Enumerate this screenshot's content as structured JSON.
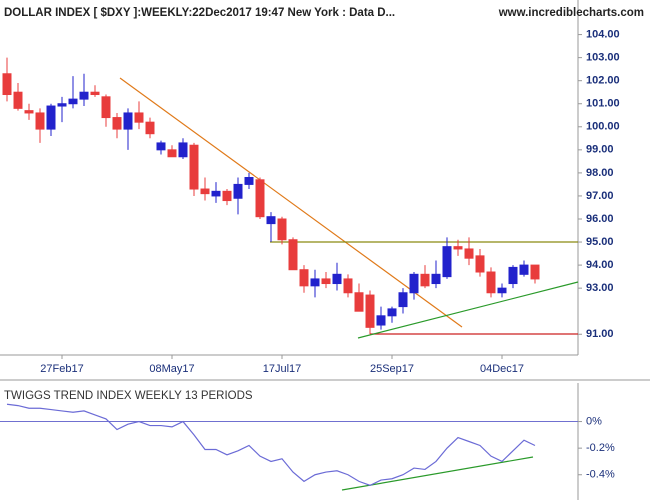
{
  "chart_data": [
    {
      "type": "candlestick",
      "title": "DOLLAR INDEX [ $DXY ]:WEEKLY:22Dec2017 19:47 New York : Data D...",
      "subtitle": "www.incrediblecharts.com",
      "categories": [
        null,
        null,
        null,
        null,
        null,
        "27Feb17",
        null,
        null,
        null,
        null,
        null,
        null,
        null,
        null,
        null,
        "08May17",
        null,
        null,
        null,
        null,
        null,
        null,
        null,
        null,
        null,
        "17Jul17",
        null,
        null,
        null,
        null,
        null,
        null,
        null,
        null,
        null,
        "25Sep17",
        null,
        null,
        null,
        null,
        null,
        null,
        null,
        null,
        null,
        "04Dec17",
        null,
        null,
        null
      ],
      "open": [
        102.3,
        101.5,
        100.7,
        100.6,
        99.9,
        100.9,
        101.0,
        101.2,
        101.5,
        101.3,
        100.4,
        99.9,
        100.6,
        100.2,
        99.0,
        99.0,
        98.7,
        99.2,
        97.3,
        97.0,
        97.2,
        96.9,
        97.5,
        97.7,
        95.8,
        96.0,
        95.1,
        93.8,
        93.1,
        93.4,
        93.2,
        93.4,
        92.8,
        92.7,
        91.4,
        91.8,
        92.2,
        92.8,
        93.6,
        93.2,
        93.5,
        94.8,
        94.7,
        94.4,
        93.7,
        92.8,
        93.2,
        93.6,
        94.0
      ],
      "high": [
        103.0,
        101.9,
        101.0,
        100.8,
        101.0,
        101.3,
        102.2,
        102.3,
        101.8,
        101.4,
        100.6,
        100.8,
        101.1,
        100.4,
        99.4,
        99.2,
        99.5,
        99.3,
        97.8,
        97.6,
        97.3,
        97.8,
        98.0,
        97.8,
        96.3,
        96.1,
        95.2,
        94.0,
        93.8,
        93.7,
        94.1,
        93.6,
        93.2,
        92.9,
        92.2,
        92.2,
        93.0,
        93.7,
        94.0,
        94.2,
        95.2,
        95.1,
        95.2,
        94.7,
        93.9,
        93.2,
        94.0,
        94.2,
        94.0
      ],
      "low": [
        101.1,
        100.7,
        100.3,
        99.3,
        99.6,
        100.2,
        100.8,
        100.9,
        101.3,
        100.0,
        99.5,
        99.0,
        99.9,
        99.5,
        98.8,
        98.7,
        98.6,
        97.0,
        96.8,
        96.7,
        96.6,
        96.2,
        97.3,
        96.0,
        95.0,
        94.9,
        93.8,
        92.8,
        92.6,
        93.0,
        92.9,
        92.6,
        92.0,
        91.0,
        91.2,
        91.5,
        91.9,
        92.5,
        93.0,
        93.0,
        93.4,
        94.4,
        94.0,
        93.5,
        92.6,
        92.6,
        93.0,
        93.5,
        93.2
      ],
      "close": [
        101.4,
        100.8,
        100.6,
        99.9,
        100.9,
        101.0,
        101.2,
        101.5,
        101.4,
        100.4,
        99.9,
        100.6,
        100.2,
        99.7,
        99.3,
        98.7,
        99.3,
        97.3,
        97.1,
        97.2,
        96.8,
        97.5,
        97.8,
        96.1,
        96.1,
        95.1,
        93.8,
        93.1,
        93.4,
        93.2,
        93.6,
        92.8,
        92.0,
        91.3,
        91.8,
        92.1,
        92.8,
        93.6,
        93.1,
        93.6,
        94.8,
        94.7,
        94.3,
        93.7,
        92.8,
        93.0,
        93.9,
        94.0,
        93.4
      ],
      "up_color": "#2222cc",
      "down_color": "#e83c3c",
      "ylim": [
        90.1,
        105.5
      ],
      "yticks": [
        {
          "value": 91,
          "label": "91.00"
        },
        {
          "value": 93,
          "label": "93.00"
        },
        {
          "value": 94,
          "label": "94.00"
        },
        {
          "value": 95,
          "label": "95.00"
        },
        {
          "value": 96,
          "label": "96.00"
        },
        {
          "value": 97,
          "label": "97.00"
        },
        {
          "value": 98,
          "label": "98.00"
        },
        {
          "value": 99,
          "label": "99.00"
        },
        {
          "value": 100,
          "label": "100.00"
        },
        {
          "value": 101,
          "label": "101.00"
        },
        {
          "value": 102,
          "label": "102.00"
        },
        {
          "value": 103,
          "label": "103.00"
        },
        {
          "value": 104,
          "label": "104.00"
        }
      ]
    },
    {
      "type": "line",
      "title": "TWIGGS TREND INDEX WEEKLY 13 PERIODS",
      "color": "#6b6bd6",
      "values": [
        0.13,
        0.12,
        0.1,
        0.1,
        0.09,
        0.08,
        0.07,
        0.08,
        0.05,
        0.02,
        -0.06,
        -0.02,
        0.0,
        -0.03,
        -0.03,
        -0.04,
        0.0,
        -0.1,
        -0.21,
        -0.21,
        -0.25,
        -0.22,
        -0.18,
        -0.26,
        -0.3,
        -0.28,
        -0.38,
        -0.45,
        -0.4,
        -0.38,
        -0.37,
        -0.4,
        -0.45,
        -0.48,
        -0.44,
        -0.43,
        -0.4,
        -0.35,
        -0.36,
        -0.3,
        -0.2,
        -0.12,
        -0.15,
        -0.18,
        -0.26,
        -0.3,
        -0.22,
        -0.14,
        -0.18
      ],
      "ylim": [
        -0.59,
        0.29
      ],
      "yticks": [
        {
          "value": 0,
          "label": "0%"
        },
        {
          "value": -0.2,
          "label": "-0.2%"
        },
        {
          "value": -0.4,
          "label": "-0.4%"
        }
      ]
    }
  ]
}
